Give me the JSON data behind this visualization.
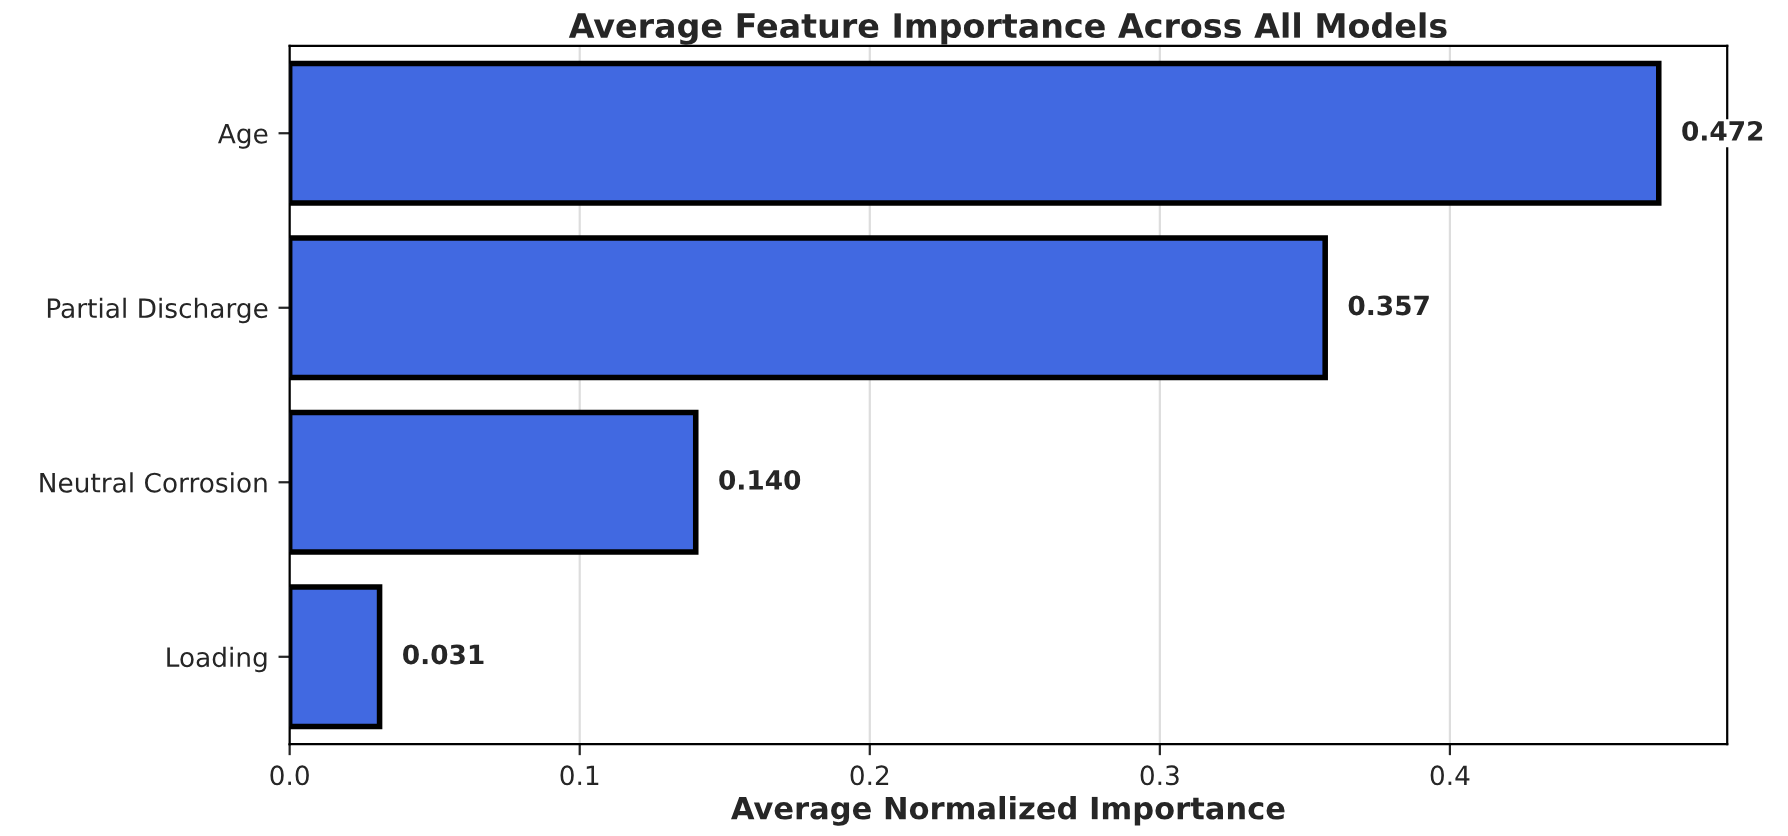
{
  "chart_data": {
    "type": "bar",
    "orientation": "horizontal",
    "title": "Average Feature Importance Across All Models",
    "xlabel": "Average Normalized Importance",
    "categories": [
      "Age",
      "Partial Discharge",
      "Neutral Corrosion",
      "Loading"
    ],
    "values": [
      0.472,
      0.357,
      0.14,
      0.031
    ],
    "value_labels": [
      "0.472",
      "0.357",
      "0.140",
      "0.031"
    ],
    "color": "#4169e1",
    "xlim": [
      0,
      0.4956
    ],
    "xticks": [
      {
        "value": 0,
        "label": "0.0"
      },
      0.1,
      0.2,
      0.3,
      0.4
    ],
    "grid": "x"
  }
}
